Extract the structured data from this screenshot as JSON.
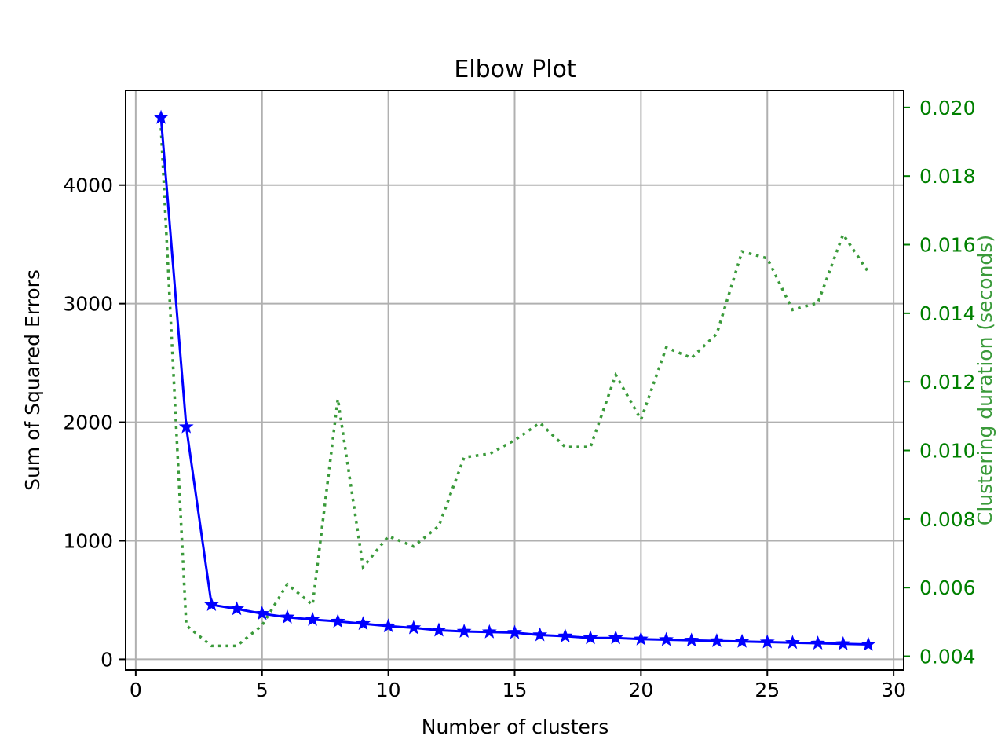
{
  "chart_data": {
    "type": "line",
    "title": "Elbow Plot",
    "xlabel": "Number of clusters",
    "ylabel": "Sum of Squared Errors",
    "y2label": "Clustering duration (seconds)",
    "xlim": [
      -0.4,
      30.4
    ],
    "ylim": [
      -90,
      4800
    ],
    "y2lim": [
      0.0036,
      0.0205
    ],
    "xticks": [
      "0",
      "5",
      "10",
      "15",
      "20",
      "25",
      "30"
    ],
    "yticks": [
      "0",
      "1000",
      "2000",
      "3000",
      "4000"
    ],
    "y2ticks": [
      "0.004",
      "0.006",
      "0.008",
      "0.010",
      "0.012",
      "0.014",
      "0.016",
      "0.018",
      "0.020"
    ],
    "grid": true,
    "colors": {
      "sse": "#0000ff",
      "duration": "#3a9a3a",
      "right_axis": "#008000"
    },
    "x": [
      1,
      2,
      3,
      4,
      5,
      6,
      7,
      8,
      9,
      10,
      11,
      12,
      13,
      14,
      15,
      16,
      17,
      18,
      19,
      20,
      21,
      22,
      23,
      24,
      25,
      26,
      27,
      28,
      29
    ],
    "series": [
      {
        "axis": "left",
        "style": "solid",
        "marker": "star",
        "values": [
          4570,
          1960,
          460,
          425,
          385,
          355,
          335,
          320,
          300,
          280,
          265,
          245,
          235,
          230,
          225,
          205,
          195,
          180,
          180,
          170,
          165,
          160,
          155,
          150,
          145,
          140,
          135,
          130,
          125
        ]
      },
      {
        "axis": "right",
        "style": "dotted",
        "values": [
          0.0194,
          0.0049,
          0.0043,
          0.0043,
          0.0049,
          0.0061,
          0.0055,
          0.0115,
          0.0066,
          0.0075,
          0.0072,
          0.0078,
          0.0098,
          0.0099,
          0.0103,
          0.0108,
          0.0101,
          0.0101,
          0.0122,
          0.0109,
          0.013,
          0.0127,
          0.0134,
          0.0158,
          0.0156,
          0.0141,
          0.0143,
          0.0163,
          0.0152
        ]
      }
    ]
  }
}
